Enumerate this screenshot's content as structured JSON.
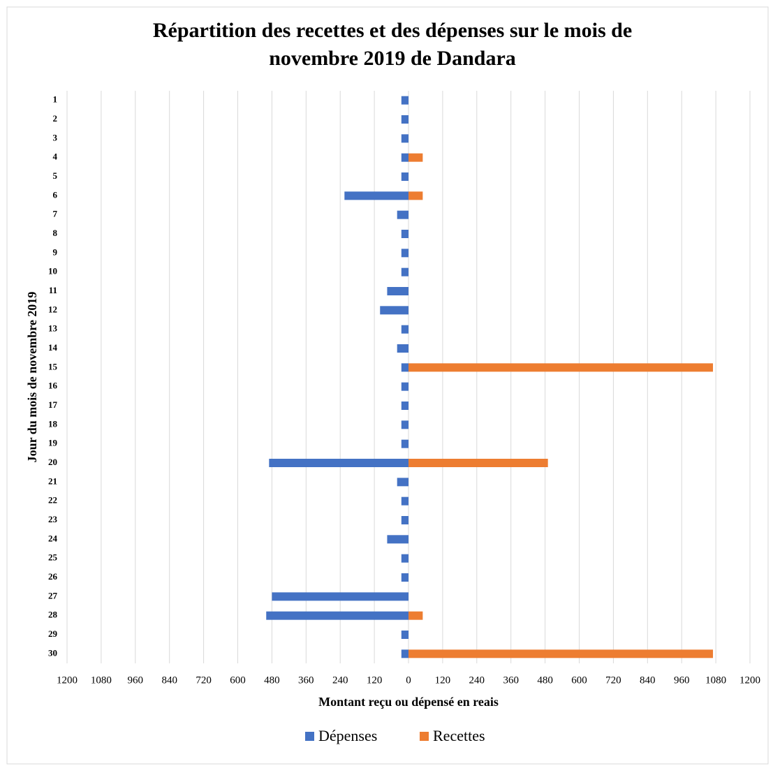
{
  "chart_data": {
    "type": "diverging_bar",
    "title": "Répartition des recettes et des dépenses sur le mois de novembre 2019 de Dandara",
    "title_lines": [
      "Répartition des recettes et des dépenses sur le mois de",
      "novembre 2019 de Dandara"
    ],
    "x_label": "Montant reçu ou dépensé en reais",
    "y_label": "Jour du mois de novembre 2019",
    "categories": [
      "1",
      "2",
      "3",
      "4",
      "5",
      "6",
      "7",
      "8",
      "9",
      "10",
      "11",
      "12",
      "13",
      "14",
      "15",
      "16",
      "17",
      "18",
      "19",
      "20",
      "21",
      "22",
      "23",
      "24",
      "25",
      "26",
      "27",
      "28",
      "29",
      "30"
    ],
    "series": [
      {
        "name": "Dépenses",
        "color": "#4472c4",
        "values": [
          -25,
          -25,
          -25,
          -25,
          -25,
          -225,
          -40,
          -25,
          -25,
          -25,
          -75,
          -100,
          -25,
          -40,
          -25,
          -25,
          -25,
          -25,
          -25,
          -490,
          -40,
          -25,
          -25,
          -75,
          -25,
          -25,
          -480,
          -500,
          -25,
          -25
        ]
      },
      {
        "name": "Recettes",
        "color": "#ed7d31",
        "values": [
          0,
          0,
          0,
          50,
          0,
          50,
          0,
          0,
          0,
          0,
          0,
          0,
          0,
          0,
          1070,
          0,
          0,
          0,
          0,
          490,
          0,
          0,
          0,
          0,
          0,
          0,
          0,
          50,
          0,
          1070
        ]
      }
    ],
    "xlim": [
      -1200,
      1200
    ],
    "xticks": [
      {
        "value": -1200,
        "label": "1200"
      },
      {
        "value": -1080,
        "label": "1080"
      },
      {
        "value": -960,
        "label": "960"
      },
      {
        "value": -840,
        "label": "840"
      },
      {
        "value": -720,
        "label": "720"
      },
      {
        "value": -600,
        "label": "600"
      },
      {
        "value": -480,
        "label": "480"
      },
      {
        "value": -360,
        "label": "360"
      },
      {
        "value": -240,
        "label": "240"
      },
      {
        "value": -120,
        "label": "120"
      },
      0,
      120,
      240,
      360,
      480,
      600,
      720,
      840,
      960,
      1080,
      1200
    ],
    "grid": true,
    "legend": "bottom"
  }
}
